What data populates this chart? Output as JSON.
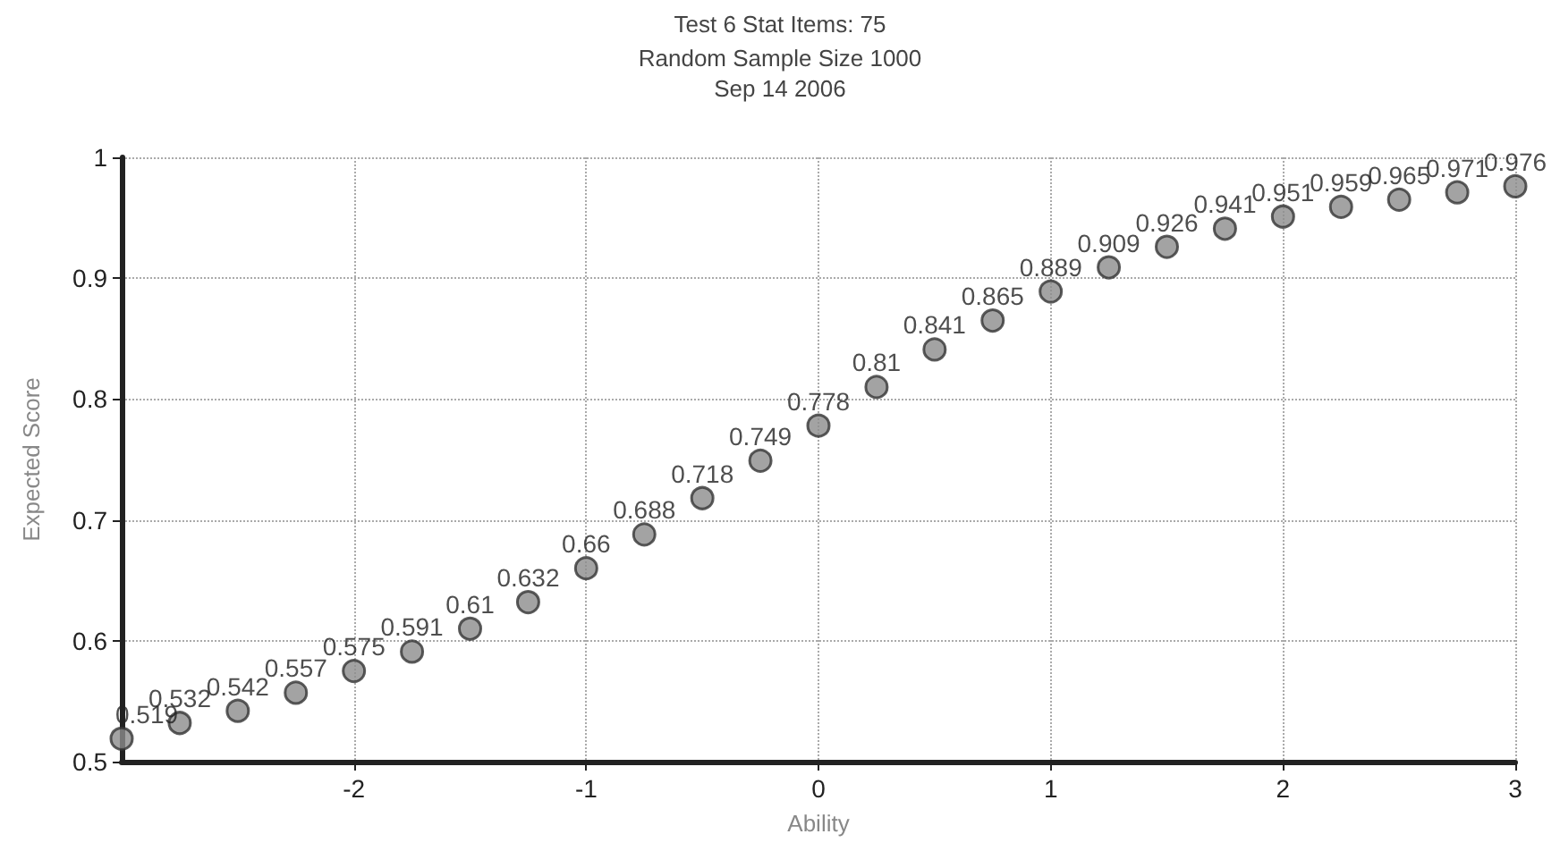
{
  "chart_data": {
    "type": "scatter",
    "title": "Test 6 Stat Items: 75",
    "subtitle": "Random Sample Size 1000\nSep 14 2006",
    "xlabel": "Ability",
    "ylabel": "Expected Score",
    "x": [
      -3,
      -2.75,
      -2.5,
      -2.25,
      -2,
      -1.75,
      -1.5,
      -1.25,
      -1,
      -0.75,
      -0.5,
      -0.25,
      0,
      0.25,
      0.5,
      0.75,
      1,
      1.25,
      1.5,
      1.75,
      2,
      2.25,
      2.5,
      2.75,
      3
    ],
    "series": [
      {
        "color": "#8c8c8c",
        "values": [
          0.519,
          0.532,
          0.542,
          0.557,
          0.575,
          0.591,
          0.61,
          0.632,
          0.66,
          0.688,
          0.718,
          0.749,
          0.778,
          0.81,
          0.841,
          0.865,
          0.889,
          0.909,
          0.926,
          0.941,
          0.951,
          0.959,
          0.965,
          0.971,
          0.976
        ]
      }
    ],
    "xlim": [
      -3,
      3
    ],
    "xticks": [
      -2,
      -1,
      0,
      1,
      2,
      3
    ],
    "ylim": [
      0.5,
      1
    ],
    "yticks": [
      0.5,
      0.6,
      0.7,
      0.8,
      0.9,
      1
    ],
    "grid": true,
    "marker": "circle",
    "data_labels": true
  }
}
